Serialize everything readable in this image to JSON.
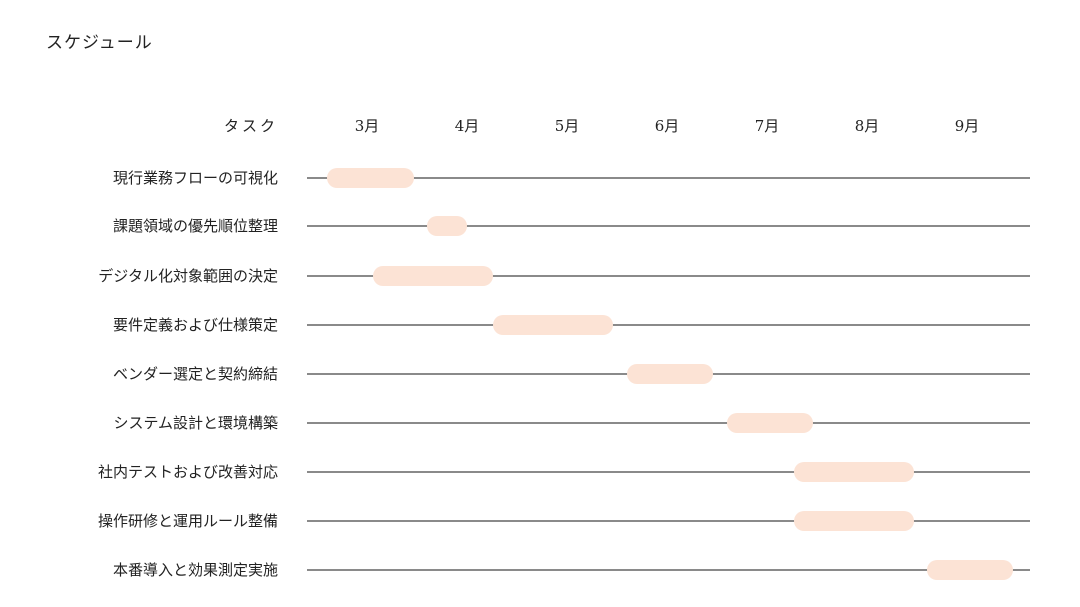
{
  "title": "スケジュール",
  "chart_data": {
    "type": "gantt",
    "task_header": "タスク",
    "months": [
      "3月",
      "4月",
      "5月",
      "6月",
      "7月",
      "8月",
      "9月"
    ],
    "axis_range_months": [
      3,
      10
    ],
    "bar_color": "#fce3d5",
    "line_color": "#444444",
    "tasks": [
      {
        "name": "現行業務フローの可視化",
        "start": 3.1,
        "end": 3.97
      },
      {
        "name": "課題領域の優先順位整理",
        "start": 4.1,
        "end": 4.5
      },
      {
        "name": "デジタル化対象範囲の決定",
        "start": 3.56,
        "end": 4.76
      },
      {
        "name": "要件定義および仕様策定",
        "start": 4.76,
        "end": 5.96
      },
      {
        "name": "ベンダー選定と契約締結",
        "start": 6.1,
        "end": 6.96
      },
      {
        "name": "システム設計と環境構築",
        "start": 7.1,
        "end": 7.96
      },
      {
        "name": "社内テストおよび改善対応",
        "start": 7.77,
        "end": 8.97
      },
      {
        "name": "操作研修と運用ルール整備",
        "start": 7.77,
        "end": 8.97
      },
      {
        "name": "本番導入と効果測定実施",
        "start": 9.1,
        "end": 9.96
      }
    ]
  }
}
